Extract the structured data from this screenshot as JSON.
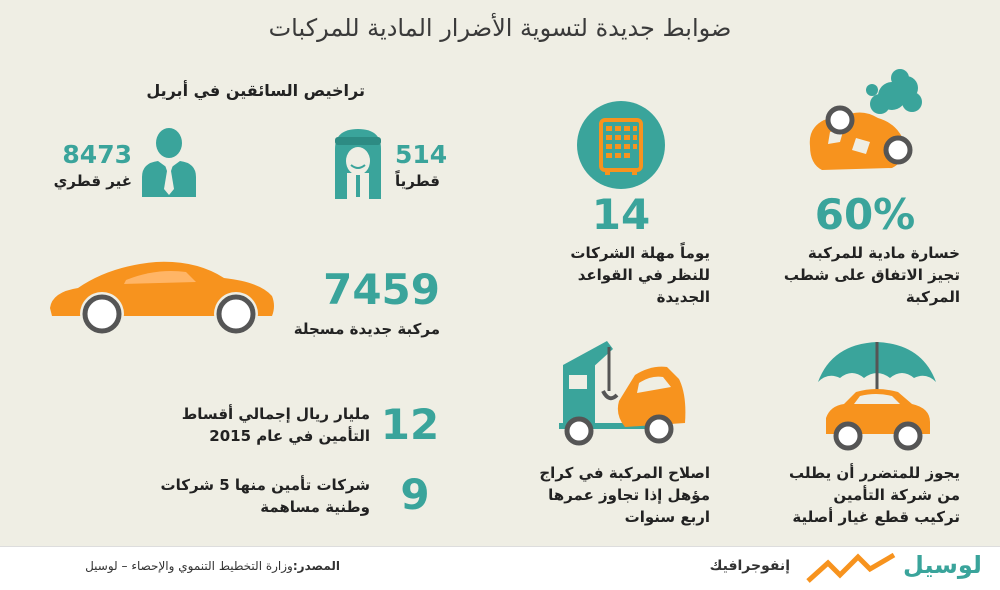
{
  "title": "ضوابط جديدة لتسوية الأضرار المادية للمركبات",
  "licenses": {
    "heading": "تراخيص السائقين في أبريل",
    "non_qatari_value": "8473",
    "non_qatari_label": "غير قطري",
    "qatari_value": "514",
    "qatari_label": "قطرياً"
  },
  "cars": {
    "value": "7459",
    "label": "مركبة جديدة مسجلة"
  },
  "premiums": {
    "value": "12",
    "line1": "مليار ريال إجمالي أقساط",
    "line2": "التأمين في عام 2015"
  },
  "insurers": {
    "value": "9",
    "line1": "شركات تأمين منها 5 شركات",
    "line2": "وطنية مساهمة"
  },
  "deadline": {
    "value": "14",
    "line1": "يوماً مهلة الشركات",
    "line2": "للنظر في القواعد",
    "line3": "الجديدة"
  },
  "loss": {
    "value": "60%",
    "line1": "خسارة مادية للمركبة",
    "line2": "تجيز الاتفاق على شطب",
    "line3": "المركبة"
  },
  "repair": {
    "line1": "اصلاح المركبة في كراج",
    "line2": "مؤهل إذا تجاوز عمرها",
    "line3": "اربع سنوات"
  },
  "parts": {
    "line1": "يجوز للمتضرر  أن يطلب",
    "line2": "من شركة التأمين",
    "line3": "تركيب قطع غيار أصلية"
  },
  "footer": {
    "source_label": "المصدر:",
    "source_text": "وزارة التخطيط التنموي والإحصاء – لوسيل",
    "infographic": "إنفوجرافيك",
    "brand": "لوسيل"
  },
  "colors": {
    "teal": "#3aa49b",
    "orange": "#f7931e",
    "background": "#efeee4"
  }
}
